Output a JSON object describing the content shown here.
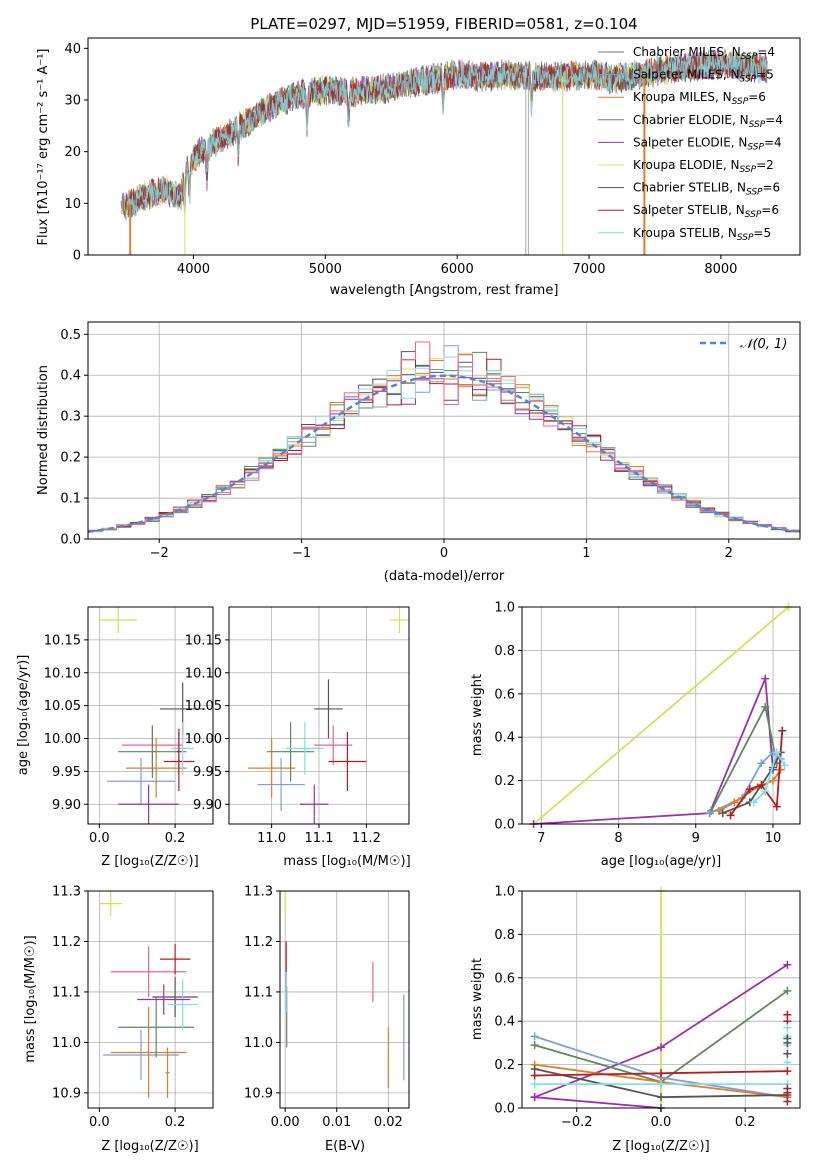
{
  "chart_data": [
    {
      "id": "spectrum",
      "type": "line",
      "title": "PLATE=0297, MJD=51959, FIBERID=0581, z=0.104",
      "xlabel": "wavelength [Angstrom, rest frame]",
      "ylabel": "Flux [f$_{\\lambda}$10$^{-17}$ erg cm$^{-2}$ s$^{-1}$ A$^{-1}$]",
      "ylabel_text": "Flux [fλ10⁻¹⁷ erg cm⁻² s⁻¹ A⁻¹]",
      "xlim": [
        3200,
        8600
      ],
      "ylim": [
        0,
        42
      ],
      "xticks": [
        4000,
        5000,
        6000,
        7000,
        8000
      ],
      "yticks": [
        0,
        10,
        20,
        30,
        40
      ],
      "continuum": {
        "x": [
          3450,
          3600,
          3700,
          3800,
          3900,
          3950,
          4050,
          4200,
          4400,
          4600,
          4800,
          5000,
          5200,
          5400,
          5600,
          5800,
          6000,
          6200,
          6400,
          6600,
          6800,
          7000,
          7200,
          7400,
          7600,
          7800,
          8000,
          8200,
          8350
        ],
        "y": [
          9,
          11,
          12,
          12.5,
          11,
          17,
          20,
          22.5,
          25.5,
          29,
          31,
          32,
          31.5,
          32,
          33,
          34,
          35,
          34.5,
          35,
          34.5,
          34.5,
          35,
          34,
          35,
          36,
          36.5,
          37,
          36.5,
          36
        ]
      },
      "series": [
        {
          "name": "Chabrier MILES, N$_{SSP}$=4",
          "label": "Chabrier MILES, NSSP=4",
          "color": "#5b8a5b",
          "width": 0.8
        },
        {
          "name": "Salpeter MILES, N$_{SSP}$=5",
          "label": "Salpeter MILES, NSSP=5",
          "color": "#7a9fe0",
          "width": 0.8
        },
        {
          "name": "Kroupa MILES, N$_{SSP}$=6",
          "label": "Kroupa MILES, NSSP=6",
          "color": "#e07d27",
          "width": 0.8
        },
        {
          "name": "Chabrier ELODIE, N$_{SSP}$=4",
          "label": "Chabrier ELODIE, NSSP=4",
          "color": "#5e8c5e",
          "width": 0.8
        },
        {
          "name": "Salpeter ELODIE, N$_{SSP}$=4",
          "label": "Salpeter ELODIE, NSSP=4",
          "color": "#9b2fae",
          "width": 0.8
        },
        {
          "name": "Kroupa ELODIE, N$_{SSP}$=2",
          "label": "Kroupa ELODIE, NSSP=2",
          "color": "#d4e157",
          "width": 0.8
        },
        {
          "name": "Chabrier STELIB, N$_{SSP}$=6",
          "label": "Chabrier STELIB, NSSP=6",
          "color": "#555555",
          "width": 0.8
        },
        {
          "name": "Salpeter STELIB, N$_{SSP}$=6",
          "label": "Salpeter STELIB, NSSP=6",
          "color": "#b71c1c",
          "width": 0.8
        },
        {
          "name": "Kroupa STELIB, N$_{SSP}$=5",
          "label": "Kroupa STELIB, NSSP=5",
          "color": "#80deea",
          "width": 0.8
        }
      ]
    },
    {
      "id": "residuals",
      "type": "line",
      "xlabel": "(data-model)/error",
      "ylabel": "Normed distribution",
      "xlim": [
        -2.5,
        2.5
      ],
      "ylim": [
        0,
        0.53
      ],
      "xticks": [
        -2,
        -1,
        0,
        1,
        2
      ],
      "yticks": [
        0.0,
        0.1,
        0.2,
        0.3,
        0.4,
        0.5
      ],
      "grid": true,
      "legend": {
        "position": "top-right",
        "label": "$\\mathcal{N}(0,1)$",
        "label_text": "𝒩(0, 1)"
      },
      "gaussian": {
        "mean": 0,
        "sigma": 1,
        "color": "#4f86d6",
        "dash": "6,4"
      },
      "bin_width": 0.1,
      "series_colors": [
        "#5b8a5b",
        "#e07d27",
        "#7a9fe0",
        "#9b2fae",
        "#d4e157",
        "#555555",
        "#b71c1c",
        "#80deea",
        "#f06292"
      ]
    },
    {
      "id": "age_vs_Z",
      "type": "scatter",
      "xlabel": "Z [log$_{10}$($Z/Z_\\odot$)]",
      "xlabel_text": "Z [log₁₀(Z/Z☉)]",
      "ylabel": "age  [log$_{10}$($age/yr$)]",
      "ylabel_text": "age  [log₁₀(age/yr)]",
      "xlim": [
        -0.03,
        0.3
      ],
      "ylim": [
        9.87,
        10.2
      ],
      "xticks": [
        0.0,
        0.2
      ],
      "yticks": [
        9.9,
        9.95,
        10.0,
        10.05,
        10.1,
        10.15
      ],
      "points": [
        {
          "x": 0.05,
          "xerr": 0.05,
          "y": 10.18,
          "yerr": 0.02,
          "color": "#d4e157"
        },
        {
          "x": 0.11,
          "xerr": 0.09,
          "y": 9.935,
          "yerr": 0.035,
          "color": "#7a9fe0"
        },
        {
          "x": 0.14,
          "xerr": 0.08,
          "y": 9.99,
          "yerr": 0.03,
          "color": "#f06292"
        },
        {
          "x": 0.15,
          "xerr": 0.08,
          "y": 9.955,
          "yerr": 0.045,
          "color": "#e07d27"
        },
        {
          "x": 0.14,
          "xerr": 0.09,
          "y": 9.98,
          "yerr": 0.04,
          "color": "#5b8a5b"
        },
        {
          "x": 0.21,
          "xerr": 0.04,
          "y": 9.965,
          "yerr": 0.045,
          "color": "#b71c1c"
        },
        {
          "x": 0.22,
          "xerr": 0.06,
          "y": 10.045,
          "yerr": 0.04,
          "color": "#555555"
        },
        {
          "x": 0.22,
          "xerr": 0.03,
          "y": 9.985,
          "yerr": 0.04,
          "color": "#80deea"
        },
        {
          "x": 0.13,
          "xerr": 0.08,
          "y": 9.9,
          "yerr": 0.03,
          "color": "#9b2fae"
        },
        {
          "x": 0.21,
          "xerr": 0.005,
          "y": 9.98,
          "yerr": 0.035,
          "color": "#b71c1c"
        }
      ]
    },
    {
      "id": "age_vs_mass",
      "type": "scatter",
      "xlabel": "mass [log$_{10}$($M/M_\\odot$)]",
      "xlabel_text": "mass [log₁₀(M/M☉)]",
      "xlim": [
        10.91,
        11.29
      ],
      "ylim": [
        9.87,
        10.2
      ],
      "xticks": [
        11.0,
        11.1,
        11.2
      ],
      "yticks": [
        9.9,
        9.95,
        10.0,
        10.05,
        10.1,
        10.15
      ],
      "points": [
        {
          "x": 11.27,
          "xerr": 0.02,
          "y": 10.18,
          "yerr": 0.02,
          "color": "#d4e157"
        },
        {
          "x": 11.02,
          "xerr": 0.05,
          "y": 9.93,
          "yerr": 0.04,
          "color": "#7a9fe0"
        },
        {
          "x": 11.0,
          "xerr": 0.05,
          "y": 9.955,
          "yerr": 0.045,
          "color": "#e07d27"
        },
        {
          "x": 11.13,
          "xerr": 0.04,
          "y": 9.99,
          "yerr": 0.03,
          "color": "#f06292"
        },
        {
          "x": 11.04,
          "xerr": 0.05,
          "y": 9.98,
          "yerr": 0.045,
          "color": "#5b8a5b"
        },
        {
          "x": 11.12,
          "xerr": 0.03,
          "y": 10.045,
          "yerr": 0.045,
          "color": "#555555"
        },
        {
          "x": 11.16,
          "xerr": 0.04,
          "y": 9.965,
          "yerr": 0.045,
          "color": "#b71c1c"
        },
        {
          "x": 11.07,
          "xerr": 0.04,
          "y": 9.985,
          "yerr": 0.04,
          "color": "#80deea"
        },
        {
          "x": 11.09,
          "xerr": 0.03,
          "y": 9.9,
          "yerr": 0.03,
          "color": "#9b2fae"
        }
      ]
    },
    {
      "id": "mass_weight_vs_age",
      "type": "line",
      "xlabel": "age  [log$_{10}$($age/yr$)]",
      "xlabel_text": "age  [log₁₀(age/yr)]",
      "ylabel": "mass weight",
      "xlim": [
        6.75,
        10.35
      ],
      "ylim": [
        0,
        1.0
      ],
      "xticks": [
        7,
        8,
        9,
        10
      ],
      "yticks": [
        0.0,
        0.2,
        0.4,
        0.6,
        0.8,
        1.0
      ],
      "series": [
        {
          "color": "#d4e157",
          "x": [
            6.9,
            10.2
          ],
          "y": [
            0.0,
            1.0
          ]
        },
        {
          "color": "#9b2fae",
          "x": [
            6.9,
            9.18,
            9.9,
            10.0
          ],
          "y": [
            0.0,
            0.05,
            0.67,
            0.25
          ]
        },
        {
          "color": "#5b8a5b",
          "x": [
            9.2,
            9.9,
            10.05
          ],
          "y": [
            0.06,
            0.54,
            0.28
          ]
        },
        {
          "color": "#7a9fe0",
          "x": [
            9.18,
            9.6,
            9.85,
            10.0,
            10.1
          ],
          "y": [
            0.05,
            0.12,
            0.28,
            0.33,
            0.3
          ]
        },
        {
          "color": "#e07d27",
          "x": [
            9.3,
            9.5,
            9.8,
            10.0,
            10.1
          ],
          "y": [
            0.06,
            0.1,
            0.17,
            0.2,
            0.25
          ]
        },
        {
          "color": "#555555",
          "x": [
            9.35,
            9.7,
            10.0,
            10.1
          ],
          "y": [
            0.05,
            0.1,
            0.26,
            0.33
          ]
        },
        {
          "color": "#b71c1c",
          "x": [
            9.45,
            9.7,
            9.85,
            10.05,
            10.12
          ],
          "y": [
            0.04,
            0.16,
            0.18,
            0.08,
            0.43
          ]
        },
        {
          "color": "#80deea",
          "x": [
            9.75,
            9.9,
            10.05,
            10.15
          ],
          "y": [
            0.1,
            0.15,
            0.33,
            0.27
          ]
        }
      ]
    },
    {
      "id": "mass_vs_Z",
      "type": "scatter",
      "xlabel": "Z [log$_{10}$($Z/Z_\\odot$)]",
      "xlabel_text": "Z [log₁₀(Z/Z☉)]",
      "ylabel": "mass [log$_{10}$($M/M_\\odot$)]",
      "ylabel_text": "mass [log₁₀(M/M☉)]",
      "xlim": [
        -0.03,
        0.3
      ],
      "ylim": [
        10.87,
        11.3
      ],
      "xticks": [
        0.0,
        0.2
      ],
      "yticks": [
        10.9,
        11.0,
        11.1,
        11.2,
        11.3
      ],
      "points": [
        {
          "x": 0.03,
          "xerr": 0.03,
          "y": 11.275,
          "yerr": 0.025,
          "color": "#d4e157"
        },
        {
          "x": 0.11,
          "xerr": 0.1,
          "y": 10.975,
          "yerr": 0.05,
          "color": "#7a9fe0"
        },
        {
          "x": 0.13,
          "xerr": 0.1,
          "y": 11.14,
          "yerr": 0.05,
          "color": "#f06292"
        },
        {
          "x": 0.13,
          "xerr": 0.1,
          "y": 10.98,
          "yerr": 0.09,
          "color": "#e07d27"
        },
        {
          "x": 0.15,
          "xerr": 0.1,
          "y": 11.03,
          "yerr": 0.06,
          "color": "#5b8a5b"
        },
        {
          "x": 0.2,
          "xerr": 0.04,
          "y": 11.165,
          "yerr": 0.03,
          "color": "#b71c1c"
        },
        {
          "x": 0.2,
          "xerr": 0.06,
          "y": 11.09,
          "yerr": 0.04,
          "color": "#555555"
        },
        {
          "x": 0.22,
          "xerr": 0.04,
          "y": 11.075,
          "yerr": 0.05,
          "color": "#80deea"
        },
        {
          "x": 0.17,
          "xerr": 0.07,
          "y": 11.085,
          "yerr": 0.03,
          "color": "#9b2fae"
        },
        {
          "x": 0.18,
          "xerr": 0.005,
          "y": 10.94,
          "yerr": 0.05,
          "color": "#e07d27"
        }
      ]
    },
    {
      "id": "mass_vs_ebv",
      "type": "scatter",
      "xlabel": "E(B-V)",
      "xlim": [
        -0.001,
        0.024
      ],
      "ylim": [
        10.87,
        11.3
      ],
      "xticks": [
        0.0,
        0.01,
        0.02
      ],
      "xtick_labels": [
        "0.00",
        "0.01",
        "0.02"
      ],
      "yticks": [
        10.9,
        11.0,
        11.1,
        11.2,
        11.3
      ],
      "points": [
        {
          "x": 0.0,
          "y": 11.275,
          "yerr": 0.025,
          "color": "#d4e157"
        },
        {
          "x": 0.0002,
          "y": 11.15,
          "yerr": 0.05,
          "color": "#b71c1c"
        },
        {
          "x": 0.0003,
          "y": 11.05,
          "yerr": 0.06,
          "color": "#5b8a5b"
        },
        {
          "x": 0.0002,
          "y": 11.1,
          "yerr": 0.04,
          "color": "#80deea"
        },
        {
          "x": 0.017,
          "y": 11.12,
          "yerr": 0.04,
          "color": "#f06292"
        },
        {
          "x": 0.02,
          "y": 10.97,
          "yerr": 0.06,
          "color": "#e07d27"
        },
        {
          "x": 0.023,
          "y": 11.01,
          "yerr": 0.085,
          "color": "#7a9fe0"
        }
      ]
    },
    {
      "id": "mass_weight_vs_Z",
      "type": "line",
      "xlabel": "Z [log$_{10}$($Z/Z_\\odot$)]",
      "xlabel_text": "Z [log₁₀(Z/Z☉)]",
      "ylabel": "mass weight",
      "xlim": [
        -0.33,
        0.33
      ],
      "ylim": [
        0,
        1.0
      ],
      "xticks": [
        -0.2,
        0.0,
        0.2
      ],
      "xtick_labels": [
        "−0.2",
        "0.0",
        "0.2"
      ],
      "yticks": [
        0.0,
        0.2,
        0.4,
        0.6,
        0.8,
        1.0
      ],
      "series": [
        {
          "color": "#d4e157",
          "x": [
            0.0,
            0.0
          ],
          "y": [
            0.0,
            1.0
          ]
        },
        {
          "color": "#9b2fae",
          "x": [
            -0.3,
            0.0,
            0.3
          ],
          "y": [
            0.05,
            0.28,
            0.66
          ]
        },
        {
          "color": "#9b2fae",
          "x": [
            -0.3,
            0.0
          ],
          "y": [
            0.05,
            0.0
          ]
        },
        {
          "color": "#5b8a5b",
          "x": [
            -0.3,
            0.0,
            0.3
          ],
          "y": [
            0.29,
            0.12,
            0.54
          ]
        },
        {
          "color": "#7a9fe0",
          "x": [
            -0.3,
            0.0,
            0.3
          ],
          "y": [
            0.33,
            0.14,
            0.05
          ]
        },
        {
          "color": "#e07d27",
          "x": [
            -0.3,
            0.0,
            0.3
          ],
          "y": [
            0.2,
            0.12,
            0.05
          ]
        },
        {
          "color": "#555555",
          "x": [
            -0.3,
            0.0,
            0.3
          ],
          "y": [
            0.18,
            0.05,
            0.06
          ]
        },
        {
          "color": "#b71c1c",
          "x": [
            -0.3,
            0.0,
            0.3
          ],
          "y": [
            0.15,
            0.16,
            0.17
          ]
        },
        {
          "color": "#80deea",
          "x": [
            -0.3,
            0.0,
            0.3
          ],
          "y": [
            0.11,
            0.11,
            0.11
          ]
        }
      ],
      "edge_markers": [
        {
          "color": "#b71c1c",
          "x": 0.3,
          "y": [
            0.03,
            0.07,
            0.09,
            0.4,
            0.43
          ]
        },
        {
          "color": "#80deea",
          "x": 0.3,
          "y": [
            0.21,
            0.25,
            0.29,
            0.33,
            0.37
          ]
        },
        {
          "color": "#555555",
          "x": 0.3,
          "y": [
            0.25,
            0.3,
            0.32
          ]
        }
      ]
    }
  ]
}
